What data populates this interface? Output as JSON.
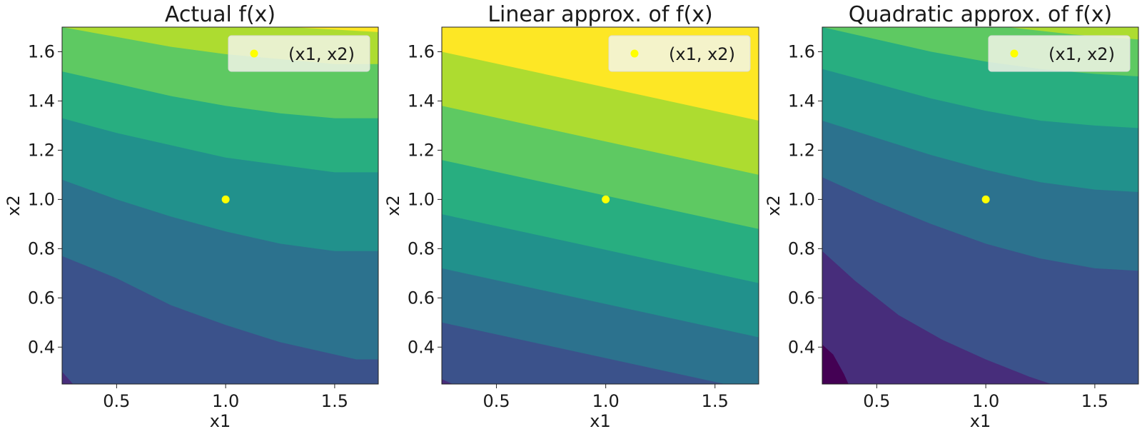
{
  "chart_data": [
    {
      "type": "contour",
      "title": "Actual f(x)",
      "xlabel": "x1",
      "ylabel": "x2",
      "xlim": [
        0.25,
        1.7
      ],
      "ylim": [
        0.25,
        1.7
      ],
      "xticks": [
        "0.5",
        "1.0",
        "1.5"
      ],
      "yticks": [
        "0.4",
        "0.6",
        "0.8",
        "1.0",
        "1.2",
        "1.4",
        "1.6"
      ],
      "levels": 9,
      "point": {
        "x": 1.0,
        "y": 1.0,
        "label": "(x1, x2)"
      },
      "legend": "top-right",
      "boundaries": [
        [
          [
            0.25,
            0.3
          ],
          [
            0.3,
            0.25
          ]
        ],
        [
          [
            0.25,
            0.77
          ],
          [
            0.5,
            0.68
          ],
          [
            0.75,
            0.57
          ],
          [
            1.0,
            0.49
          ],
          [
            1.25,
            0.42
          ],
          [
            1.5,
            0.37
          ],
          [
            1.6,
            0.35
          ],
          [
            1.7,
            0.35
          ]
        ],
        [
          [
            0.25,
            1.08
          ],
          [
            0.5,
            1.0
          ],
          [
            0.75,
            0.93
          ],
          [
            1.0,
            0.87
          ],
          [
            1.25,
            0.82
          ],
          [
            1.5,
            0.79
          ],
          [
            1.7,
            0.79
          ]
        ],
        [
          [
            0.25,
            1.33
          ],
          [
            0.5,
            1.27
          ],
          [
            0.75,
            1.22
          ],
          [
            1.0,
            1.17
          ],
          [
            1.25,
            1.14
          ],
          [
            1.5,
            1.11
          ],
          [
            1.7,
            1.11
          ]
        ],
        [
          [
            0.25,
            1.52
          ],
          [
            0.5,
            1.47
          ],
          [
            0.75,
            1.42
          ],
          [
            1.0,
            1.38
          ],
          [
            1.25,
            1.35
          ],
          [
            1.5,
            1.33
          ],
          [
            1.7,
            1.33
          ]
        ],
        [
          [
            0.25,
            1.7
          ],
          [
            0.5,
            1.66
          ],
          [
            0.75,
            1.62
          ],
          [
            1.0,
            1.59
          ],
          [
            1.25,
            1.57
          ],
          [
            1.5,
            1.55
          ],
          [
            1.7,
            1.55
          ]
        ],
        [
          [
            1.3,
            1.7
          ],
          [
            1.5,
            1.69
          ],
          [
            1.7,
            1.68
          ]
        ]
      ]
    },
    {
      "type": "contour",
      "title": "Linear approx. of f(x)",
      "xlabel": "x1",
      "ylabel": "x2",
      "xlim": [
        0.25,
        1.7
      ],
      "ylim": [
        0.25,
        1.7
      ],
      "xticks": [
        "0.5",
        "1.0",
        "1.5"
      ],
      "yticks": [
        "0.4",
        "0.6",
        "0.8",
        "1.0",
        "1.2",
        "1.4",
        "1.6"
      ],
      "levels": 9,
      "point": {
        "x": 1.0,
        "y": 1.0,
        "label": "(x1, x2)"
      },
      "legend": "top-right",
      "boundaries": [
        [
          [
            0.25,
            0.27
          ],
          [
            0.3,
            0.25
          ]
        ],
        [
          [
            0.25,
            0.5
          ],
          [
            1.7,
            0.22
          ]
        ],
        [
          [
            0.25,
            0.72
          ],
          [
            1.7,
            0.44
          ]
        ],
        [
          [
            0.25,
            0.94
          ],
          [
            1.7,
            0.66
          ]
        ],
        [
          [
            0.25,
            1.16
          ],
          [
            1.7,
            0.88
          ]
        ],
        [
          [
            0.25,
            1.38
          ],
          [
            1.7,
            1.1
          ]
        ],
        [
          [
            0.25,
            1.6
          ],
          [
            1.7,
            1.32
          ]
        ],
        [
          [
            0.95,
            1.7
          ],
          [
            1.7,
            1.55
          ]
        ]
      ]
    },
    {
      "type": "contour",
      "title": "Quadratic approx. of f(x)",
      "xlabel": "x1",
      "ylabel": "x2",
      "xlim": [
        0.25,
        1.7
      ],
      "ylim": [
        0.25,
        1.7
      ],
      "xticks": [
        "0.5",
        "1.0",
        "1.5"
      ],
      "yticks": [
        "0.4",
        "0.6",
        "0.8",
        "1.0",
        "1.2",
        "1.4",
        "1.6"
      ],
      "levels": 9,
      "point": {
        "x": 1.0,
        "y": 1.0,
        "label": "(x1, x2)"
      },
      "legend": "top-right",
      "boundaries": [
        [
          [
            0.25,
            0.41
          ],
          [
            0.3,
            0.37
          ],
          [
            0.35,
            0.29
          ],
          [
            0.37,
            0.25
          ]
        ],
        [
          [
            0.25,
            0.79
          ],
          [
            0.4,
            0.67
          ],
          [
            0.6,
            0.53
          ],
          [
            0.8,
            0.43
          ],
          [
            1.0,
            0.35
          ],
          [
            1.2,
            0.28
          ],
          [
            1.3,
            0.25
          ]
        ],
        [
          [
            0.25,
            1.09
          ],
          [
            0.5,
            0.99
          ],
          [
            0.75,
            0.9
          ],
          [
            1.0,
            0.82
          ],
          [
            1.25,
            0.76
          ],
          [
            1.5,
            0.72
          ],
          [
            1.7,
            0.71
          ]
        ],
        [
          [
            0.25,
            1.32
          ],
          [
            0.5,
            1.25
          ],
          [
            0.75,
            1.18
          ],
          [
            1.0,
            1.12
          ],
          [
            1.25,
            1.07
          ],
          [
            1.5,
            1.04
          ],
          [
            1.7,
            1.03
          ]
        ],
        [
          [
            0.25,
            1.53
          ],
          [
            0.5,
            1.47
          ],
          [
            0.75,
            1.41
          ],
          [
            1.0,
            1.36
          ],
          [
            1.25,
            1.32
          ],
          [
            1.5,
            1.3
          ],
          [
            1.7,
            1.29
          ]
        ],
        [
          [
            0.25,
            1.7
          ],
          [
            0.5,
            1.65
          ],
          [
            0.75,
            1.6
          ],
          [
            1.0,
            1.56
          ],
          [
            1.25,
            1.53
          ],
          [
            1.5,
            1.51
          ],
          [
            1.7,
            1.5
          ]
        ],
        [
          [
            1.1,
            1.7
          ],
          [
            1.4,
            1.67
          ],
          [
            1.7,
            1.65
          ]
        ]
      ]
    }
  ],
  "colors": {
    "viridis": [
      "#440154",
      "#472d7b",
      "#3b528b",
      "#2c728e",
      "#21918c",
      "#28ae80",
      "#5ec962",
      "#addc30",
      "#fde725"
    ],
    "point": "#ffff00",
    "legend_bg": "#f2f5e8"
  }
}
